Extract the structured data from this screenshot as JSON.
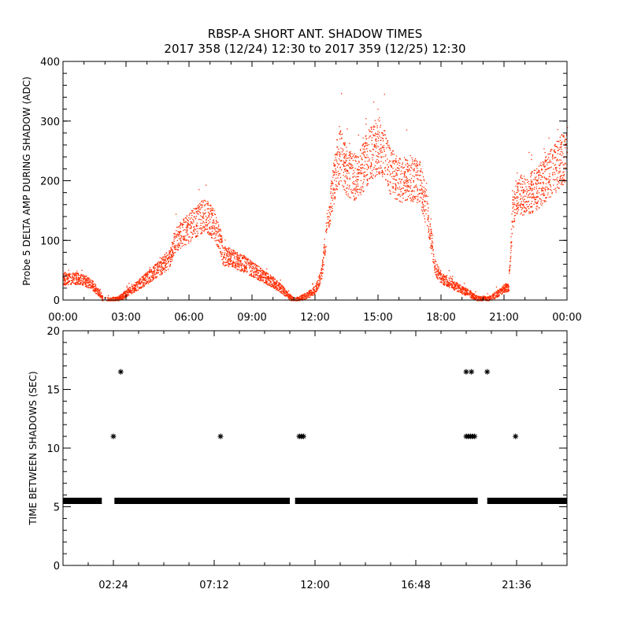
{
  "title": "RBSP-A SHORT ANT. SHADOW TIMES",
  "subtitle": "2017 358 (12/24) 12:30 to 2017 359 (12/25) 12:30",
  "colors": {
    "amplitude_points": "#ff2a00",
    "axes": "#000000",
    "interval_points": "#000000"
  },
  "chart_data": [
    {
      "type": "scatter",
      "ylabel": "Probe 5 DELTA AMP DURING SHADOW (ADC)",
      "xlabel": "",
      "xlim": [
        0,
        24
      ],
      "ylim": [
        0,
        400
      ],
      "x_ticks": [
        "00:00",
        "03:00",
        "06:00",
        "09:00",
        "12:00",
        "15:00",
        "18:00",
        "21:00",
        "00:00"
      ],
      "y_ticks": [
        "0",
        "100",
        "200",
        "300",
        "400"
      ],
      "grid": false,
      "series": [
        {
          "marker": "dot",
          "envelope": {
            "x": [
              0.0,
              0.5,
              1.0,
              1.4,
              1.8,
              1.9,
              2.6,
              3.0,
              3.5,
              4.0,
              4.5,
              5.0,
              5.2,
              5.3,
              5.6,
              6.0,
              6.5,
              6.8,
              7.2,
              7.5,
              7.6,
              8.0,
              8.5,
              9.0,
              9.5,
              10.0,
              10.5,
              10.8,
              11.0,
              11.6,
              12.0,
              12.3,
              12.6,
              13.0,
              13.2,
              13.4,
              13.7,
              14.0,
              14.5,
              15.0,
              15.2,
              15.6,
              16.0,
              16.5,
              17.0,
              17.3,
              17.7,
              18.0,
              18.5,
              19.0,
              19.5,
              19.7,
              20.3,
              20.7,
              21.0,
              21.2,
              21.4,
              21.6,
              22.0,
              22.5,
              23.0,
              23.5,
              24.0
            ],
            "y": [
              36,
              37,
              34,
              25,
              8,
              0,
              2,
              12,
              24,
              38,
              52,
              68,
              82,
              100,
              110,
              122,
              138,
              144,
              125,
              98,
              75,
              72,
              63,
              52,
              41,
              30,
              16,
              5,
              0,
              8,
              18,
              45,
              135,
              225,
              245,
              220,
              210,
              205,
              240,
              262,
              250,
              215,
              200,
              205,
              195,
              150,
              55,
              38,
              28,
              18,
              8,
              3,
              3,
              12,
              20,
              22,
              145,
              180,
              175,
              185,
              205,
              225,
              245
            ]
          }
        }
      ]
    },
    {
      "type": "scatter",
      "ylabel": "TIME BETWEEN SHADOWS (SEC)",
      "xlabel": "",
      "xlim": [
        0,
        24
      ],
      "ylim": [
        0,
        20
      ],
      "x_ticks": [
        "02:24",
        "07:12",
        "12:00",
        "16:48",
        "21:36"
      ],
      "y_ticks": [
        "0",
        "5",
        "10",
        "15",
        "20"
      ],
      "grid": false,
      "series": [
        {
          "marker": "asterisk",
          "baseline_value": 5.5,
          "baseline_ranges": [
            [
              0.0,
              1.85
            ],
            [
              2.45,
              10.8
            ],
            [
              11.05,
              19.75
            ],
            [
              20.2,
              24.0
            ]
          ],
          "points": [
            {
              "x": 2.4,
              "y": 11.0
            },
            {
              "x": 2.75,
              "y": 16.5
            },
            {
              "x": 7.5,
              "y": 11.0
            },
            {
              "x": 11.25,
              "y": 11.0
            },
            {
              "x": 11.35,
              "y": 11.0
            },
            {
              "x": 11.45,
              "y": 11.0
            },
            {
              "x": 19.2,
              "y": 16.5
            },
            {
              "x": 19.45,
              "y": 16.5
            },
            {
              "x": 19.2,
              "y": 11.0
            },
            {
              "x": 19.3,
              "y": 11.0
            },
            {
              "x": 19.4,
              "y": 11.0
            },
            {
              "x": 19.5,
              "y": 11.0
            },
            {
              "x": 19.6,
              "y": 11.0
            },
            {
              "x": 20.2,
              "y": 16.5
            },
            {
              "x": 21.55,
              "y": 11.0
            }
          ]
        }
      ]
    }
  ]
}
